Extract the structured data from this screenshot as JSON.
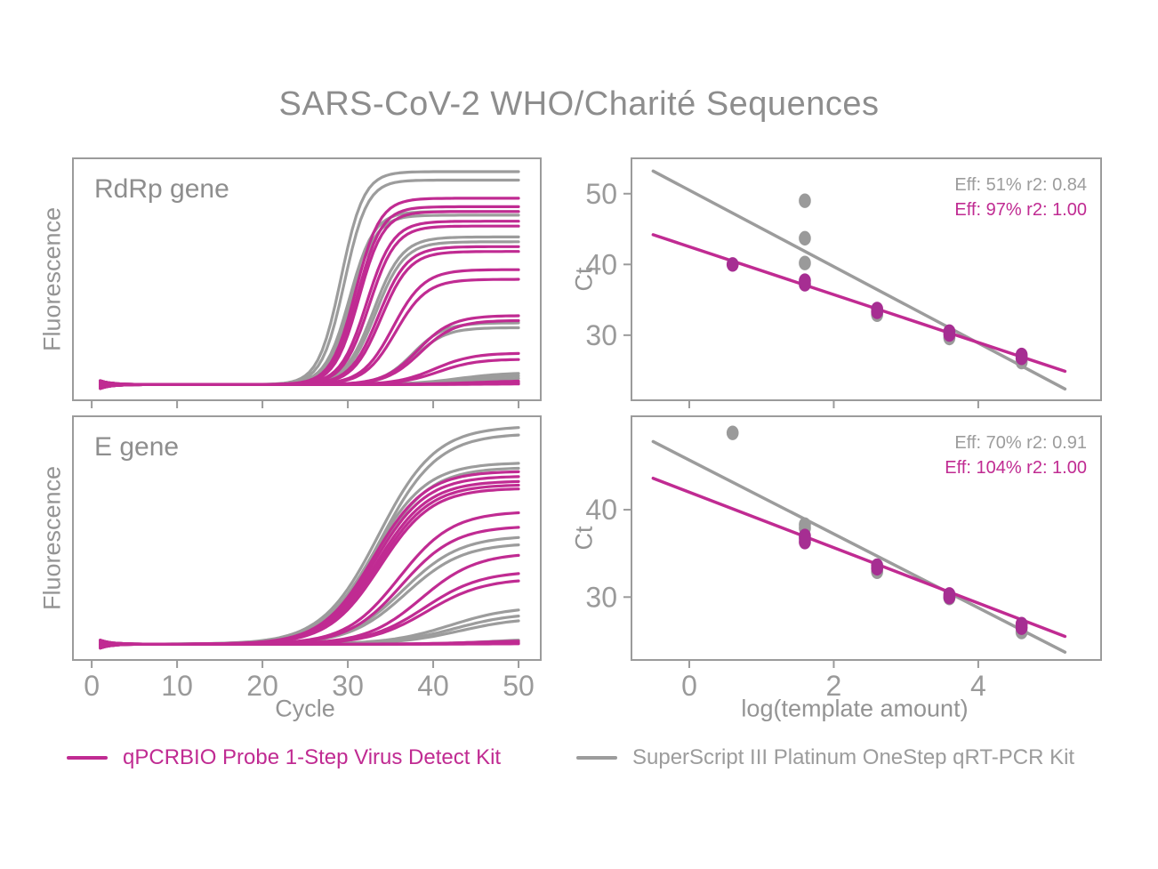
{
  "title": "SARS-CoV-2 WHO/Charité Sequences",
  "colors": {
    "magenta": "#C02B92",
    "magenta_dot": "#A62E92",
    "gray": "#9C9C9C",
    "gray_dot": "#9A9A9A",
    "border": "#9b9b9b",
    "tick_text": "#9a9a9a",
    "label_text": "#949494",
    "title_text": "#8d8d8d"
  },
  "legend": [
    {
      "label": "qPCRBIO Probe 1-Step Virus Detect Kit",
      "color_key": "magenta"
    },
    {
      "label": "SuperScript III Platinum OneStep qRT-PCR Kit",
      "color_key": "gray"
    }
  ],
  "chart_data": [
    {
      "id": "amp_rdrp",
      "type": "line",
      "panel_label": "RdRp gene",
      "ylabel": "Fluorescence",
      "xlabel": "",
      "xlim": [
        -2.2,
        52.6
      ],
      "ylim": [
        0,
        1
      ],
      "xticks": [
        0,
        10,
        20,
        30,
        40,
        50
      ],
      "show_xtick_labels": false,
      "yticks": [],
      "baseline": 0.065,
      "curve_model": "logistic: v = baseline + (plateau-baseline)/(1+exp(-steepness*(cycle-midpoint)))",
      "curves": [
        {
          "series": "SuperScript",
          "color_key": "gray",
          "midpoint": 29.2,
          "steepness": 0.75,
          "plateau": 0.945
        },
        {
          "series": "SuperScript",
          "color_key": "gray",
          "midpoint": 29.6,
          "steepness": 0.75,
          "plateau": 0.91
        },
        {
          "series": "SuperScript",
          "color_key": "gray",
          "midpoint": 30.2,
          "steepness": 0.7,
          "plateau": 0.78
        },
        {
          "series": "SuperScript",
          "color_key": "gray",
          "midpoint": 30.45,
          "steepness": 0.7,
          "plateau": 0.765
        },
        {
          "series": "SuperScript",
          "color_key": "gray",
          "midpoint": 33.0,
          "steepness": 0.6,
          "plateau": 0.675
        },
        {
          "series": "SuperScript",
          "color_key": "gray",
          "midpoint": 33.25,
          "steepness": 0.6,
          "plateau": 0.655
        },
        {
          "series": "SuperScript",
          "color_key": "gray",
          "midpoint": 37.6,
          "steepness": 0.55,
          "plateau": 0.32
        },
        {
          "series": "SuperScript",
          "color_key": "gray",
          "midpoint": 37.9,
          "steepness": 0.55,
          "plateau": 0.3
        },
        {
          "series": "SuperScript",
          "color_key": "gray",
          "midpoint": 43.0,
          "steepness": 0.35,
          "plateau": 0.115
        },
        {
          "series": "SuperScript",
          "color_key": "gray",
          "midpoint": 44.0,
          "steepness": 0.35,
          "plateau": 0.105
        },
        {
          "series": "SuperScript",
          "color_key": "gray",
          "midpoint": 46.0,
          "steepness": 0.3,
          "plateau": 0.098
        },
        {
          "series": "qPCRBIO",
          "color_key": "magenta",
          "midpoint": 30.9,
          "steepness": 0.7,
          "plateau": 0.835
        },
        {
          "series": "qPCRBIO",
          "color_key": "magenta",
          "midpoint": 31.1,
          "steepness": 0.7,
          "plateau": 0.8
        },
        {
          "series": "qPCRBIO",
          "color_key": "magenta",
          "midpoint": 31.3,
          "steepness": 0.7,
          "plateau": 0.78
        },
        {
          "series": "qPCRBIO",
          "color_key": "magenta",
          "midpoint": 32.2,
          "steepness": 0.65,
          "plateau": 0.74
        },
        {
          "series": "qPCRBIO",
          "color_key": "magenta",
          "midpoint": 32.5,
          "steepness": 0.65,
          "plateau": 0.72
        },
        {
          "series": "qPCRBIO",
          "color_key": "magenta",
          "midpoint": 33.6,
          "steepness": 0.6,
          "plateau": 0.635
        },
        {
          "series": "qPCRBIO",
          "color_key": "magenta",
          "midpoint": 33.9,
          "steepness": 0.6,
          "plateau": 0.615
        },
        {
          "series": "qPCRBIO",
          "color_key": "magenta",
          "midpoint": 35.3,
          "steepness": 0.55,
          "plateau": 0.54
        },
        {
          "series": "qPCRBIO",
          "color_key": "magenta",
          "midpoint": 35.6,
          "steepness": 0.55,
          "plateau": 0.5
        },
        {
          "series": "qPCRBIO",
          "color_key": "magenta",
          "midpoint": 38.2,
          "steepness": 0.5,
          "plateau": 0.35
        },
        {
          "series": "qPCRBIO",
          "color_key": "magenta",
          "midpoint": 38.5,
          "steepness": 0.5,
          "plateau": 0.33
        },
        {
          "series": "qPCRBIO",
          "color_key": "magenta",
          "midpoint": 40.2,
          "steepness": 0.45,
          "plateau": 0.195
        },
        {
          "series": "qPCRBIO",
          "color_key": "magenta",
          "midpoint": 40.6,
          "steepness": 0.45,
          "plateau": 0.17
        },
        {
          "series": "qPCRBIO",
          "color_key": "magenta",
          "midpoint": 45.0,
          "steepness": 0.3,
          "plateau": 0.082
        },
        {
          "series": "qPCRBIO",
          "color_key": "magenta",
          "midpoint": 46.0,
          "steepness": 0.3,
          "plateau": 0.076
        },
        {
          "series": "qPCRBIO",
          "color_key": "magenta",
          "midpoint": 47.0,
          "steepness": 0.3,
          "plateau": 0.071
        },
        {
          "series": "qPCRBIO",
          "color_key": "magenta",
          "midpoint": 46.5,
          "steepness": 0.3,
          "plateau": 0.068
        }
      ]
    },
    {
      "id": "amp_e",
      "type": "line",
      "panel_label": "E gene",
      "ylabel": "Fluorescence",
      "xlabel": "Cycle",
      "xlim": [
        -2.2,
        52.6
      ],
      "ylim": [
        0,
        1
      ],
      "xticks": [
        0,
        10,
        20,
        30,
        40,
        50
      ],
      "show_xtick_labels": true,
      "yticks": [],
      "baseline": 0.065,
      "curve_model": "logistic: v = baseline + (plateau-baseline)/(1+exp(-steepness*(cycle-midpoint)))",
      "curves": [
        {
          "series": "SuperScript",
          "color_key": "gray",
          "midpoint": 33.6,
          "steepness": 0.3,
          "plateau": 0.96
        },
        {
          "series": "SuperScript",
          "color_key": "gray",
          "midpoint": 33.9,
          "steepness": 0.3,
          "plateau": 0.93
        },
        {
          "series": "SuperScript",
          "color_key": "gray",
          "midpoint": 33.0,
          "steepness": 0.32,
          "plateau": 0.81
        },
        {
          "series": "SuperScript",
          "color_key": "gray",
          "midpoint": 33.3,
          "steepness": 0.32,
          "plateau": 0.79
        },
        {
          "series": "SuperScript",
          "color_key": "gray",
          "midpoint": 36.5,
          "steepness": 0.3,
          "plateau": 0.51
        },
        {
          "series": "SuperScript",
          "color_key": "gray",
          "midpoint": 36.8,
          "steepness": 0.3,
          "plateau": 0.48
        },
        {
          "series": "SuperScript",
          "color_key": "gray",
          "midpoint": 42.0,
          "steepness": 0.28,
          "plateau": 0.22
        },
        {
          "series": "SuperScript",
          "color_key": "gray",
          "midpoint": 42.6,
          "steepness": 0.28,
          "plateau": 0.195
        },
        {
          "series": "SuperScript",
          "color_key": "gray",
          "midpoint": 43.2,
          "steepness": 0.28,
          "plateau": 0.175
        },
        {
          "series": "SuperScript",
          "color_key": "gray",
          "midpoint": 47.0,
          "steepness": 0.3,
          "plateau": 0.088
        },
        {
          "series": "qPCRBIO",
          "color_key": "magenta",
          "midpoint": 33.0,
          "steepness": 0.33,
          "plateau": 0.775
        },
        {
          "series": "qPCRBIO",
          "color_key": "magenta",
          "midpoint": 33.2,
          "steepness": 0.33,
          "plateau": 0.755
        },
        {
          "series": "qPCRBIO",
          "color_key": "magenta",
          "midpoint": 33.4,
          "steepness": 0.33,
          "plateau": 0.735
        },
        {
          "series": "qPCRBIO",
          "color_key": "magenta",
          "midpoint": 33.6,
          "steepness": 0.33,
          "plateau": 0.72
        },
        {
          "series": "qPCRBIO",
          "color_key": "magenta",
          "midpoint": 33.8,
          "steepness": 0.33,
          "plateau": 0.705
        },
        {
          "series": "qPCRBIO",
          "color_key": "magenta",
          "midpoint": 36.0,
          "steepness": 0.32,
          "plateau": 0.61
        },
        {
          "series": "qPCRBIO",
          "color_key": "magenta",
          "midpoint": 36.3,
          "steepness": 0.32,
          "plateau": 0.55
        },
        {
          "series": "qPCRBIO",
          "color_key": "magenta",
          "midpoint": 38.6,
          "steepness": 0.31,
          "plateau": 0.44
        },
        {
          "series": "qPCRBIO",
          "color_key": "magenta",
          "midpoint": 39.0,
          "steepness": 0.3,
          "plateau": 0.365
        },
        {
          "series": "qPCRBIO",
          "color_key": "magenta",
          "midpoint": 39.3,
          "steepness": 0.3,
          "plateau": 0.335
        },
        {
          "series": "qPCRBIO",
          "color_key": "magenta",
          "midpoint": 45.0,
          "steepness": 0.3,
          "plateau": 0.08
        },
        {
          "series": "qPCRBIO",
          "color_key": "magenta",
          "midpoint": 46.0,
          "steepness": 0.3,
          "plateau": 0.074
        },
        {
          "series": "qPCRBIO",
          "color_key": "magenta",
          "midpoint": 47.0,
          "steepness": 0.3,
          "plateau": 0.07
        },
        {
          "series": "qPCRBIO",
          "color_key": "magenta",
          "midpoint": 47.5,
          "steepness": 0.3,
          "plateau": 0.067
        }
      ]
    },
    {
      "id": "std_rdrp",
      "type": "scatter",
      "ylabel": "Ct",
      "xlabel": "",
      "xlim": [
        -0.8,
        5.7
      ],
      "ylim": [
        20.8,
        55.0
      ],
      "xticks": [
        0,
        2,
        4
      ],
      "show_xtick_labels": false,
      "yticks": [
        30,
        40,
        50
      ],
      "annotations": [
        {
          "text": "Eff: 51% r2: 0.84",
          "color_key": "gray"
        },
        {
          "text": "Eff: 97% r2: 1.00",
          "color_key": "magenta"
        }
      ],
      "lines": [
        {
          "series": "SuperScript",
          "color_key": "gray",
          "x1": -0.5,
          "y1": 53.2,
          "x2": 5.2,
          "y2": 22.4
        },
        {
          "series": "qPCRBIO",
          "color_key": "magenta",
          "x1": -0.5,
          "y1": 44.2,
          "x2": 5.2,
          "y2": 24.9
        }
      ],
      "points": {
        "gray": [
          [
            1.6,
            49.0
          ],
          [
            1.6,
            43.7
          ],
          [
            1.6,
            40.2
          ],
          [
            2.6,
            32.9
          ],
          [
            3.6,
            29.6
          ],
          [
            4.6,
            26.2
          ]
        ],
        "magenta": [
          [
            0.6,
            40.0
          ],
          [
            1.6,
            37.2
          ],
          [
            1.6,
            37.7
          ],
          [
            2.6,
            33.3
          ],
          [
            2.6,
            33.7
          ],
          [
            3.6,
            30.1
          ],
          [
            3.6,
            30.5
          ],
          [
            4.6,
            26.8
          ],
          [
            4.6,
            27.2
          ]
        ]
      }
    },
    {
      "id": "std_e",
      "type": "scatter",
      "ylabel": "Ct",
      "xlabel": "log(template amount)",
      "xlim": [
        -0.8,
        5.7
      ],
      "ylim": [
        22.8,
        50.7
      ],
      "xticks": [
        0,
        2,
        4
      ],
      "show_xtick_labels": true,
      "yticks": [
        30,
        40
      ],
      "annotations": [
        {
          "text": "Eff: 70% r2: 0.91",
          "color_key": "gray"
        },
        {
          "text": "Eff: 104% r2: 1.00",
          "color_key": "magenta"
        }
      ],
      "lines": [
        {
          "series": "SuperScript",
          "color_key": "gray",
          "x1": -0.5,
          "y1": 47.8,
          "x2": 5.2,
          "y2": 23.7
        },
        {
          "series": "qPCRBIO",
          "color_key": "magenta",
          "x1": -0.5,
          "y1": 43.6,
          "x2": 5.2,
          "y2": 25.5
        }
      ],
      "points": {
        "gray": [
          [
            0.6,
            48.8
          ],
          [
            1.6,
            37.9
          ],
          [
            1.6,
            38.3
          ],
          [
            2.6,
            32.9
          ],
          [
            3.6,
            29.9
          ],
          [
            4.6,
            26.0
          ]
        ],
        "magenta": [
          [
            1.6,
            36.3
          ],
          [
            1.6,
            36.7
          ],
          [
            1.6,
            37.0
          ],
          [
            2.6,
            33.3
          ],
          [
            2.6,
            33.6
          ],
          [
            3.6,
            30.0
          ],
          [
            3.6,
            30.3
          ],
          [
            4.6,
            26.5
          ],
          [
            4.6,
            26.9
          ]
        ]
      }
    }
  ]
}
